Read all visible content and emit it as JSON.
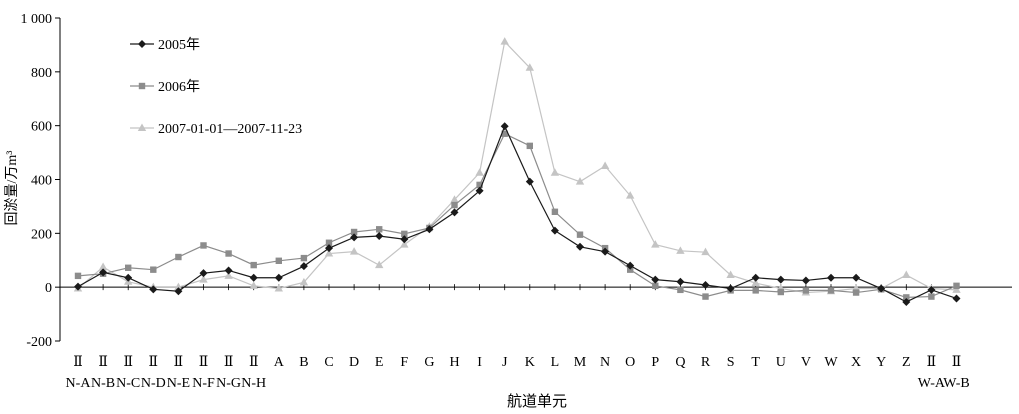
{
  "chart_data": {
    "type": "line",
    "xlabel": "航道单元",
    "ylabel": "回淤量/万m³",
    "ylim": [
      -200,
      1000
    ],
    "yticks": [
      -200,
      0,
      200,
      400,
      600,
      800,
      1000
    ],
    "ytick_labels": [
      "-200",
      "0",
      "200",
      "400",
      "600",
      "800",
      "1 000"
    ],
    "grid": false,
    "legend_position": "top-left",
    "categories": [
      {
        "top": "Ⅱ",
        "bottom": "N-A"
      },
      {
        "top": "Ⅱ",
        "bottom": "N-B"
      },
      {
        "top": "Ⅱ",
        "bottom": "N-C"
      },
      {
        "top": "Ⅱ",
        "bottom": "N-D"
      },
      {
        "top": "Ⅱ",
        "bottom": "N-E"
      },
      {
        "top": "Ⅱ",
        "bottom": "N-F"
      },
      {
        "top": "Ⅱ",
        "bottom": "N-G"
      },
      {
        "top": "Ⅱ",
        "bottom": "N-H"
      },
      {
        "top": "A",
        "bottom": ""
      },
      {
        "top": "B",
        "bottom": ""
      },
      {
        "top": "C",
        "bottom": ""
      },
      {
        "top": "D",
        "bottom": ""
      },
      {
        "top": "E",
        "bottom": ""
      },
      {
        "top": "F",
        "bottom": ""
      },
      {
        "top": "G",
        "bottom": ""
      },
      {
        "top": "H",
        "bottom": ""
      },
      {
        "top": "I",
        "bottom": ""
      },
      {
        "top": "J",
        "bottom": ""
      },
      {
        "top": "K",
        "bottom": ""
      },
      {
        "top": "L",
        "bottom": ""
      },
      {
        "top": "M",
        "bottom": ""
      },
      {
        "top": "N",
        "bottom": ""
      },
      {
        "top": "O",
        "bottom": ""
      },
      {
        "top": "P",
        "bottom": ""
      },
      {
        "top": "Q",
        "bottom": ""
      },
      {
        "top": "R",
        "bottom": ""
      },
      {
        "top": "S",
        "bottom": ""
      },
      {
        "top": "T",
        "bottom": ""
      },
      {
        "top": "U",
        "bottom": ""
      },
      {
        "top": "V",
        "bottom": ""
      },
      {
        "top": "W",
        "bottom": ""
      },
      {
        "top": "X",
        "bottom": ""
      },
      {
        "top": "Y",
        "bottom": ""
      },
      {
        "top": "Z",
        "bottom": ""
      },
      {
        "top": "Ⅱ",
        "bottom": "W-A"
      },
      {
        "top": "Ⅱ",
        "bottom": "W-B"
      }
    ],
    "series": [
      {
        "name": "2005年",
        "color": "#1a1a1a",
        "marker": "diamond",
        "values": [
          2,
          55,
          35,
          -8,
          -15,
          52,
          62,
          35,
          35,
          78,
          145,
          185,
          190,
          178,
          215,
          278,
          358,
          598,
          392,
          210,
          150,
          132,
          80,
          28,
          20,
          8,
          -5,
          35,
          28,
          25,
          35,
          35,
          -5,
          -55,
          -10,
          -42
        ]
      },
      {
        "name": "2006年",
        "color": "#8c8c8c",
        "marker": "square",
        "values": [
          42,
          50,
          72,
          65,
          112,
          155,
          125,
          82,
          98,
          108,
          165,
          205,
          215,
          198,
          220,
          305,
          380,
          570,
          525,
          280,
          195,
          145,
          65,
          5,
          -10,
          -35,
          -12,
          -12,
          -18,
          -12,
          -12,
          -20,
          -8,
          -38,
          -35,
          5
        ]
      },
      {
        "name": "2007-01-01—2007-11-23",
        "color": "#c4c4c4",
        "marker": "triangle",
        "values": [
          -5,
          75,
          20,
          0,
          0,
          28,
          42,
          5,
          -5,
          18,
          125,
          132,
          82,
          158,
          225,
          325,
          425,
          912,
          815,
          425,
          392,
          450,
          340,
          158,
          135,
          130,
          45,
          15,
          -5,
          -20,
          -15,
          -5,
          -5,
          45,
          -5,
          -10
        ]
      }
    ]
  }
}
